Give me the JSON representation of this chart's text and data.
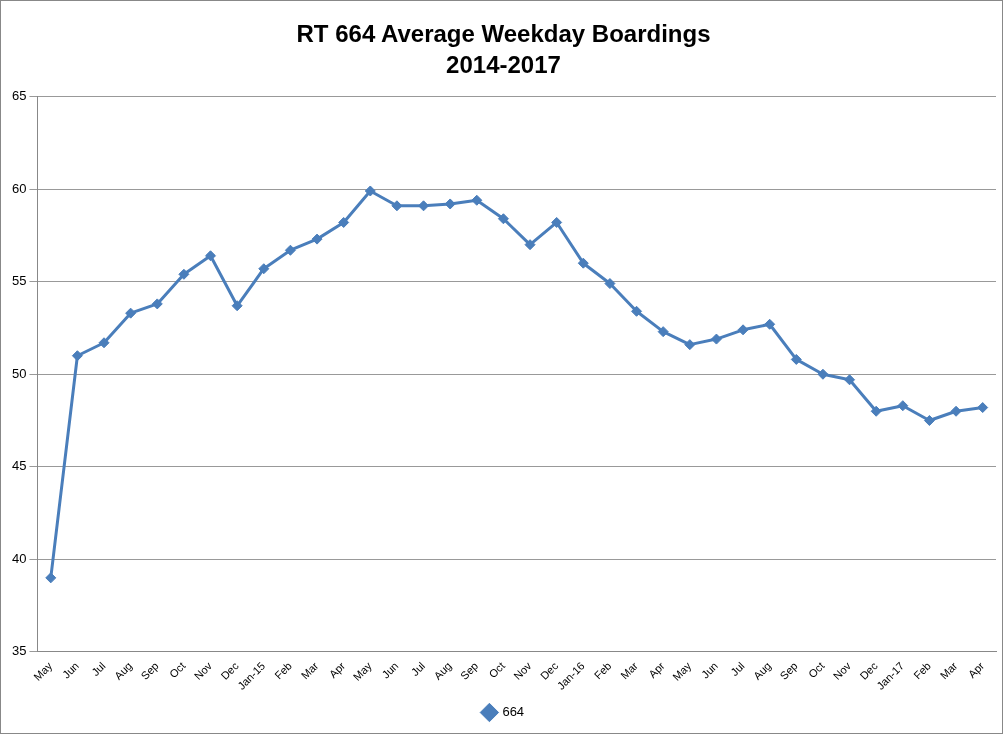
{
  "chart_data": {
    "type": "line",
    "title": "RT 664 Average Weekday Boardings",
    "subtitle": "2014-2017",
    "categories": [
      "May",
      "Jun",
      "Jul",
      "Aug",
      "Sep",
      "Oct",
      "Nov",
      "Dec",
      "Jan-15",
      "Feb",
      "Mar",
      "Apr",
      "May",
      "Jun",
      "Jul",
      "Aug",
      "Sep",
      "Oct",
      "Nov",
      "Dec",
      "Jan-16",
      "Feb",
      "Mar",
      "Apr",
      "May",
      "Jun",
      "Jul",
      "Aug",
      "Sep",
      "Oct",
      "Nov",
      "Dec",
      "Jan-17",
      "Feb",
      "Mar",
      "Apr"
    ],
    "series": [
      {
        "name": "664",
        "color": "#4a7ebb",
        "values": [
          39.0,
          51.0,
          51.7,
          53.3,
          53.8,
          55.4,
          56.4,
          53.7,
          55.7,
          56.7,
          57.3,
          58.2,
          59.9,
          59.1,
          59.1,
          59.2,
          59.4,
          58.4,
          57.0,
          58.2,
          56.0,
          54.9,
          53.4,
          52.3,
          51.6,
          51.9,
          52.4,
          52.7,
          50.8,
          50.0,
          49.7,
          48.0,
          48.3,
          47.5,
          48.0,
          48.2
        ]
      }
    ],
    "ylim": [
      35,
      65
    ],
    "yticks": [
      35,
      40,
      45,
      50,
      55,
      60,
      65
    ],
    "grid": "y",
    "legend": "bottom",
    "marker": "diamond",
    "line_style": "solid"
  }
}
